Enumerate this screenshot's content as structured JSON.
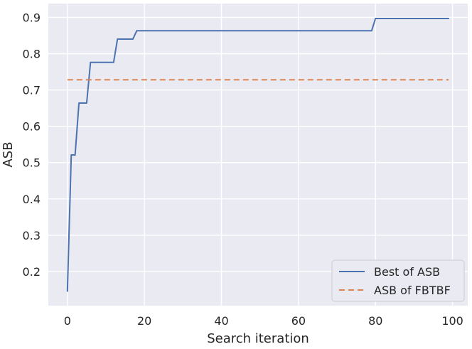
{
  "chart_data": {
    "type": "line",
    "title": "",
    "xlabel": "Search iteration",
    "ylabel": "ASB",
    "xlim": [
      -4.95,
      103.95
    ],
    "ylim": [
      0.106,
      0.938
    ],
    "x_ticks": [
      0,
      20,
      40,
      60,
      80,
      100
    ],
    "x_tick_labels": [
      "0",
      "20",
      "40",
      "60",
      "80",
      "100"
    ],
    "y_ticks": [
      0.2,
      0.3,
      0.4,
      0.5,
      0.6,
      0.7,
      0.8,
      0.9
    ],
    "y_tick_labels": [
      "0.2",
      "0.3",
      "0.4",
      "0.5",
      "0.6",
      "0.7",
      "0.8",
      "0.9"
    ],
    "grid": true,
    "legend": "lower-right",
    "series": [
      {
        "name": "Best of ASB",
        "color": "#4c72b0",
        "style": "solid",
        "points": [
          [
            0,
            0.146
          ],
          [
            1,
            0.521
          ],
          [
            2,
            0.521
          ],
          [
            3,
            0.664
          ],
          [
            4,
            0.664
          ],
          [
            5,
            0.664
          ],
          [
            6,
            0.776
          ],
          [
            7,
            0.776
          ],
          [
            8,
            0.776
          ],
          [
            9,
            0.776
          ],
          [
            10,
            0.776
          ],
          [
            11,
            0.776
          ],
          [
            12,
            0.776
          ],
          [
            13,
            0.84
          ],
          [
            14,
            0.84
          ],
          [
            15,
            0.84
          ],
          [
            16,
            0.84
          ],
          [
            17,
            0.84
          ],
          [
            18,
            0.863
          ],
          [
            79,
            0.863
          ],
          [
            80,
            0.897
          ],
          [
            99,
            0.897
          ]
        ]
      },
      {
        "name": "ASB of FBTBF",
        "color": "#dd8452",
        "style": "dashed",
        "points": [
          [
            0,
            0.728
          ],
          [
            99,
            0.728
          ]
        ]
      }
    ]
  }
}
